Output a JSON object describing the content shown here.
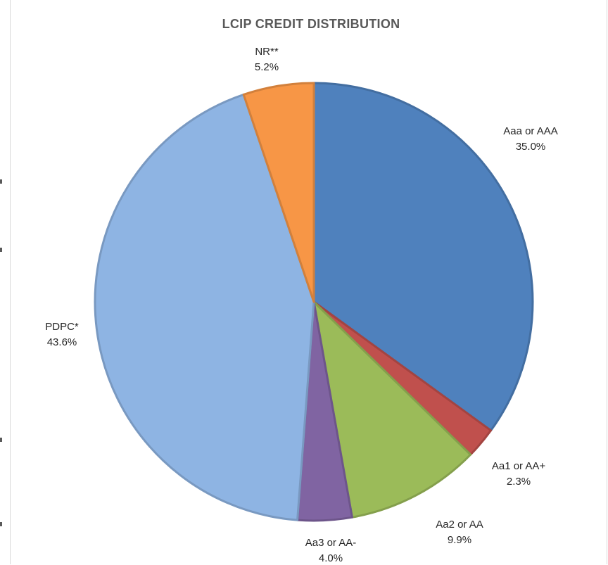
{
  "chart_data": {
    "type": "pie",
    "title": "LCIP CREDIT DISTRIBUTION",
    "slices": [
      {
        "label": "Aaa or AAA",
        "value": 35.0,
        "display": "35.0%",
        "color": "#4f81bd"
      },
      {
        "label": "Aa1 or AA+",
        "value": 2.3,
        "display": "2.3%",
        "color": "#c0504d"
      },
      {
        "label": "Aa2 or AA",
        "value": 9.9,
        "display": "9.9%",
        "color": "#9bbb59"
      },
      {
        "label": "Aa3 or AA-",
        "value": 4.0,
        "display": "4.0%",
        "color": "#8064a2"
      },
      {
        "label": "PDPC*",
        "value": 43.6,
        "display": "43.6%",
        "color": "#8eb4e3"
      },
      {
        "label": "NR**",
        "value": 5.2,
        "display": "5.2%",
        "color": "#f79646"
      }
    ],
    "start_angle_deg": 0,
    "direction": "clockwise",
    "legend": "none"
  }
}
